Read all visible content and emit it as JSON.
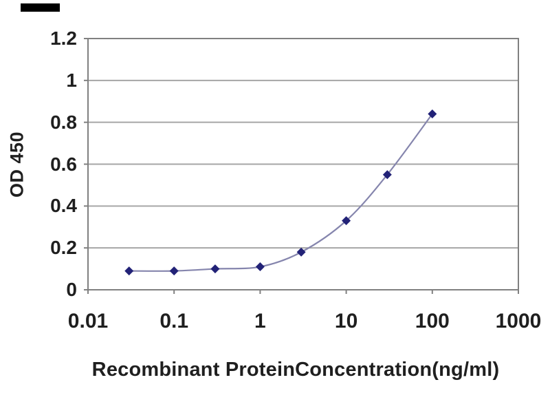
{
  "figure": {
    "background_color": "#ffffff",
    "logo_bar_color": "#000000"
  },
  "chart_data": {
    "type": "line",
    "title": "",
    "xlabel": "Recombinant ProteinConcentration(ng/ml)",
    "ylabel": "OD 450",
    "x_scale": "log",
    "xlim": [
      0.01,
      1000
    ],
    "ylim": [
      0,
      1.2
    ],
    "x_ticks": [
      0.01,
      0.1,
      1,
      10,
      100,
      1000
    ],
    "x_tick_labels": [
      "0.01",
      "0.1",
      "1",
      "10",
      "100",
      "1000"
    ],
    "y_ticks": [
      0,
      0.2,
      0.4,
      0.6,
      0.8,
      1,
      1.2
    ],
    "y_tick_labels": [
      "0",
      "0.2",
      "0.4",
      "0.6",
      "0.8",
      "1",
      "1.2"
    ],
    "grid": "horizontal",
    "legend_position": "none",
    "axis_color": "#808080",
    "grid_color": "#a6a6a6",
    "tick_color": "#808080",
    "series": [
      {
        "name": "OD 450",
        "marker": "diamond",
        "line_color": "#8585ad",
        "marker_color": "#222277",
        "x": [
          0.03,
          0.1,
          0.3,
          1,
          3,
          10,
          30,
          100
        ],
        "y": [
          0.09,
          0.09,
          0.1,
          0.11,
          0.18,
          0.33,
          0.55,
          0.84
        ]
      }
    ]
  }
}
